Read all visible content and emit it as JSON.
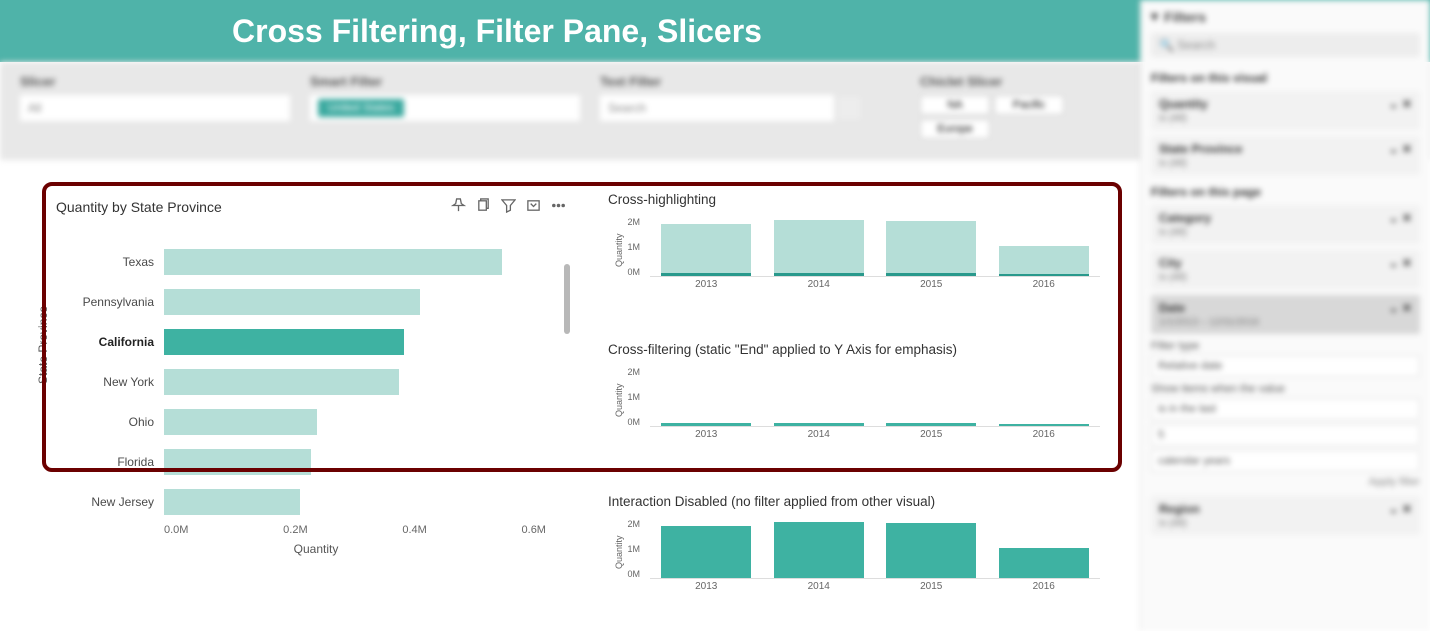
{
  "header": {
    "title": "Cross Filtering, Filter Pane, Slicers",
    "band_color": "#4fb3a9",
    "title_color": "#ffffff",
    "title_fontsize": 32
  },
  "slicers": {
    "slicer": {
      "label": "Slicer",
      "value": "All"
    },
    "smart_filter": {
      "label": "Smart Filter",
      "chip": "United States"
    },
    "text_filter": {
      "label": "Text Filter",
      "placeholder": "Search"
    },
    "chiclet": {
      "label": "Chiclet Slicer",
      "items": [
        "NA",
        "Pacific",
        "Europe"
      ]
    }
  },
  "left_chart": {
    "type": "bar",
    "title": "Quantity by State Province",
    "y_axis_title": "State Province",
    "x_axis_title": "Quantity",
    "selected": "California",
    "bar_color": "#b5ded7",
    "bar_selected_color": "#3eb2a2",
    "x_ticks": [
      "0.0M",
      "0.2M",
      "0.4M",
      "0.6M"
    ],
    "x_max": 0.7,
    "rows": [
      {
        "label": "Texas",
        "value": 0.62
      },
      {
        "label": "Pennsylvania",
        "value": 0.47
      },
      {
        "label": "California",
        "value": 0.44
      },
      {
        "label": "New York",
        "value": 0.43
      },
      {
        "label": "Ohio",
        "value": 0.28
      },
      {
        "label": "Florida",
        "value": 0.27
      },
      {
        "label": "New Jersey",
        "value": 0.25
      }
    ]
  },
  "mini_charts": {
    "y_axis_title": "Quantity",
    "y_ticks": [
      "2M",
      "1M",
      "0M"
    ],
    "y_max": 2.4,
    "categories": [
      "2013",
      "2014",
      "2015",
      "2016"
    ],
    "highlight": {
      "title": "Cross-highlighting",
      "base_color": "#b5ded7",
      "overlay_color": "#29998c",
      "values": [
        2.1,
        2.25,
        2.2,
        1.2
      ],
      "overlay_values": [
        0.12,
        0.12,
        0.12,
        0.08
      ]
    },
    "filter": {
      "title": "Cross-filtering (static \"End\" applied to Y Axis for emphasis)",
      "color": "#3eb2a2",
      "values": [
        0.12,
        0.12,
        0.12,
        0.08
      ]
    },
    "disabled": {
      "title": "Interaction Disabled (no filter applied from other visual)",
      "color": "#3eb2a2",
      "values": [
        2.1,
        2.25,
        2.2,
        1.2
      ]
    }
  },
  "filter_pane": {
    "header": "Filters",
    "search_placeholder": "Search",
    "sections": {
      "visual": {
        "title": "Filters on this visual",
        "cards": [
          {
            "title": "Quantity",
            "sub": "is (All)"
          },
          {
            "title": "State Province",
            "sub": "is (All)"
          }
        ]
      },
      "page": {
        "title": "Filters on this page",
        "cards": [
          {
            "title": "Category",
            "sub": "is (All)"
          },
          {
            "title": "City",
            "sub": "is (All)"
          }
        ]
      },
      "date_card": {
        "title": "Date",
        "sub": "1/1/2013 – 12/31/2016",
        "filter_type_label": "Filter type",
        "filter_type_value": "Relative date",
        "show_items_label": "Show items when the value",
        "op": "is in the last",
        "count": "5",
        "unit": "calendar years",
        "apply": "Apply filter"
      },
      "report": {
        "title": "Region",
        "sub": "is (All)"
      }
    }
  }
}
